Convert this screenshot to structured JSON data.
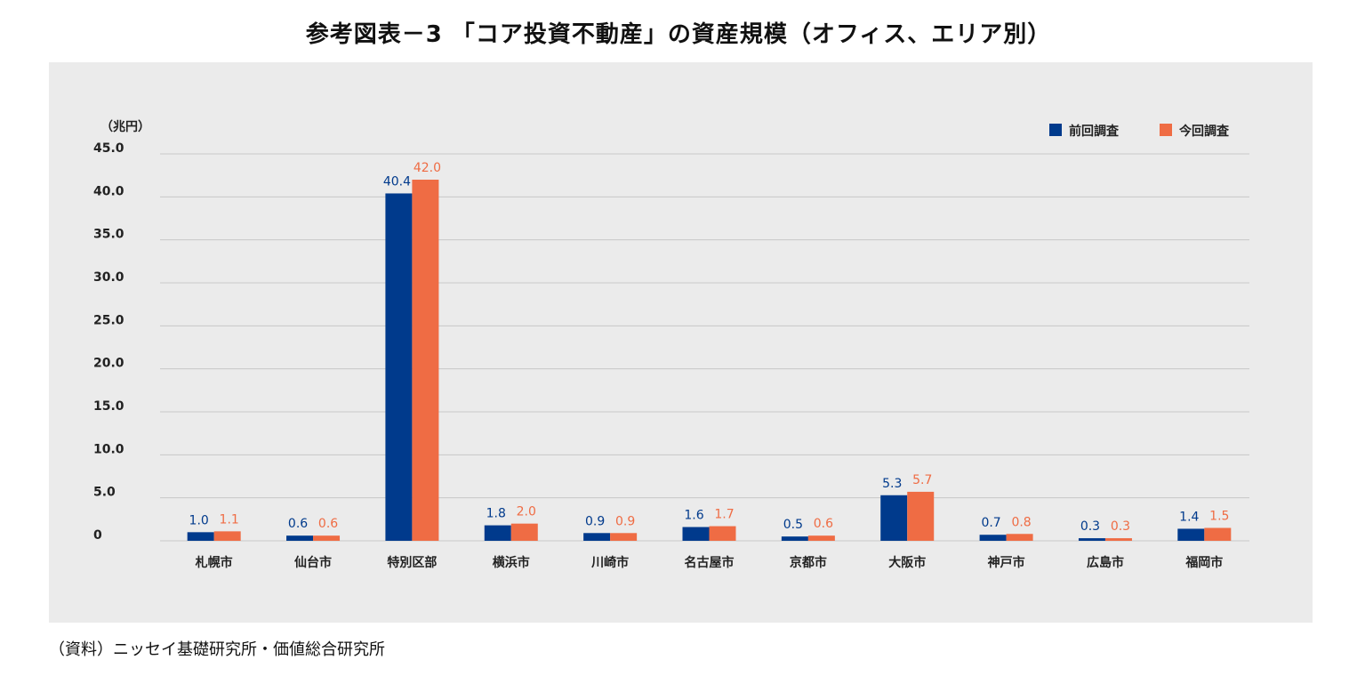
{
  "title": "参考図表－3 「コア投資不動産」の資産規模（オフィス、エリア別）",
  "source": "（資料）ニッセイ基礎研究所・価値総合研究所",
  "colors": {
    "prev": "#003a8c",
    "curr": "#ef6c44",
    "grid": "#c8c8c8",
    "panel": "#ebebeb"
  },
  "chart_data": {
    "type": "bar",
    "title": "参考図表－3 「コア投資不動産」の資産規模（オフィス、エリア別）",
    "ylabel": "（兆円）",
    "ylim": [
      0,
      45
    ],
    "yticks": [
      {
        "value": 0,
        "label": "0"
      },
      {
        "value": 5,
        "label": "5.0"
      },
      {
        "value": 10,
        "label": "10.0"
      },
      {
        "value": 15,
        "label": "15.0"
      },
      {
        "value": 20,
        "label": "20.0"
      },
      {
        "value": 25,
        "label": "25.0"
      },
      {
        "value": 30,
        "label": "30.0"
      },
      {
        "value": 35,
        "label": "35.0"
      },
      {
        "value": 40,
        "label": "40.0"
      },
      {
        "value": 45,
        "label": "45.0"
      }
    ],
    "grid": true,
    "legend_position": "top-right",
    "categories": [
      "札幌市",
      "仙台市",
      "特別区部",
      "横浜市",
      "川崎市",
      "名古屋市",
      "京都市",
      "大阪市",
      "神戸市",
      "広島市",
      "福岡市"
    ],
    "series": [
      {
        "name": "前回調査",
        "color": "#003a8c",
        "values": [
          1.0,
          0.6,
          40.4,
          1.8,
          0.9,
          1.6,
          0.5,
          5.3,
          0.7,
          0.3,
          1.4
        ],
        "labels": [
          "1.0",
          "0.6",
          "40.4",
          "1.8",
          "0.9",
          "1.6",
          "0.5",
          "5.3",
          "0.7",
          "0.3",
          "1.4"
        ]
      },
      {
        "name": "今回調査",
        "color": "#ef6c44",
        "values": [
          1.1,
          0.6,
          42.0,
          2.0,
          0.9,
          1.7,
          0.6,
          5.7,
          0.8,
          0.3,
          1.5
        ],
        "labels": [
          "1.1",
          "0.6",
          "42.0",
          "2.0",
          "0.9",
          "1.7",
          "0.6",
          "5.7",
          "0.8",
          "0.3",
          "1.5"
        ]
      }
    ]
  }
}
